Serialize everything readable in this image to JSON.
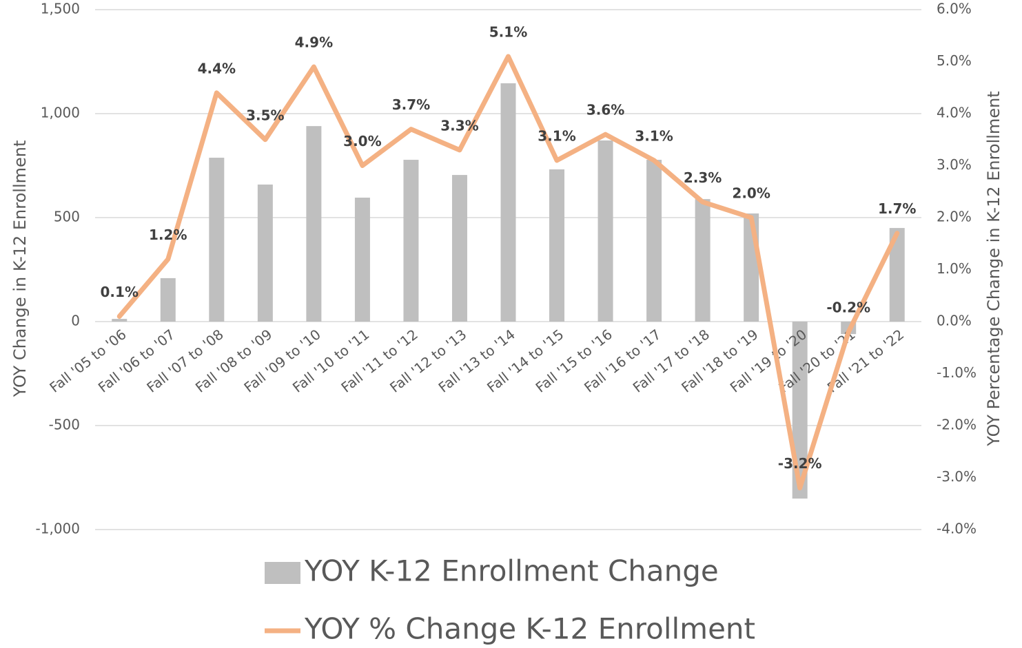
{
  "chart_data": {
    "type": "bar_line",
    "y_label": "YOY Change in K-12 Enrollment",
    "y2_label": "YOY Percentage Change in K-12 Enrollment",
    "categories": [
      "Fall '05 to '06",
      "Fall '06 to '07",
      "Fall '07 to '08",
      "Fall '08 to '09",
      "Fall '09 to '10",
      "Fall '10 to '11",
      "Fall '11 to '12",
      "Fall '12 to '13",
      "Fall '13 to '14",
      "Fall '14 to '15",
      "Fall '15 to '16",
      "Fall '16 to '17",
      "Fall '17 to '18",
      "Fall '18 to '19",
      "Fall '19 to '20",
      "Fall '20 to '21",
      "Fall '21 to '22"
    ],
    "series": [
      {
        "name": "YOY K-12 Enrollment Change",
        "type": "bar",
        "color": "#bfbfbf",
        "values": [
          13,
          209,
          788,
          659,
          940,
          596,
          778,
          705,
          1146,
          732,
          871,
          778,
          589,
          520,
          -851,
          -60,
          450
        ]
      },
      {
        "name": "YOY % Change K-12 Enrollment",
        "type": "line",
        "axis": "y2",
        "color": "#f4b183",
        "values": [
          0.1,
          1.2,
          4.4,
          3.5,
          4.9,
          3.0,
          3.7,
          3.3,
          5.1,
          3.1,
          3.6,
          3.1,
          2.3,
          2.0,
          -3.2,
          -0.2,
          1.7
        ],
        "value_labels": [
          "0.1%",
          "1.2%",
          "4.4%",
          "3.5%",
          "4.9%",
          "3.0%",
          "3.7%",
          "3.3%",
          "5.1%",
          "3.1%",
          "3.6%",
          "3.1%",
          "2.3%",
          "2.0%",
          "-3.2%",
          "-0.2%",
          "1.7%"
        ]
      }
    ],
    "ylim": [
      -1000,
      1500
    ],
    "yticks": [
      {
        "value": -1000,
        "label": "-1,000"
      },
      -500,
      0,
      500,
      {
        "value": 1000,
        "label": "1,000"
      },
      {
        "value": 1500,
        "label": "1,500"
      }
    ],
    "y2lim": [
      -4,
      6
    ],
    "y2ticks": [
      {
        "value": -4,
        "label": "-4.0%"
      },
      {
        "value": -3,
        "label": "-3.0%"
      },
      {
        "value": -2,
        "label": "-2.0%"
      },
      {
        "value": -1,
        "label": "-1.0%"
      },
      {
        "value": 0,
        "label": "0.0%"
      },
      {
        "value": 1,
        "label": "1.0%"
      },
      {
        "value": 2,
        "label": "2.0%"
      },
      {
        "value": 3,
        "label": "3.0%"
      },
      {
        "value": 4,
        "label": "4.0%"
      },
      {
        "value": 5,
        "label": "5.0%"
      },
      {
        "value": 6,
        "label": "6.0%"
      }
    ],
    "grid": true,
    "legend": "bottom"
  }
}
